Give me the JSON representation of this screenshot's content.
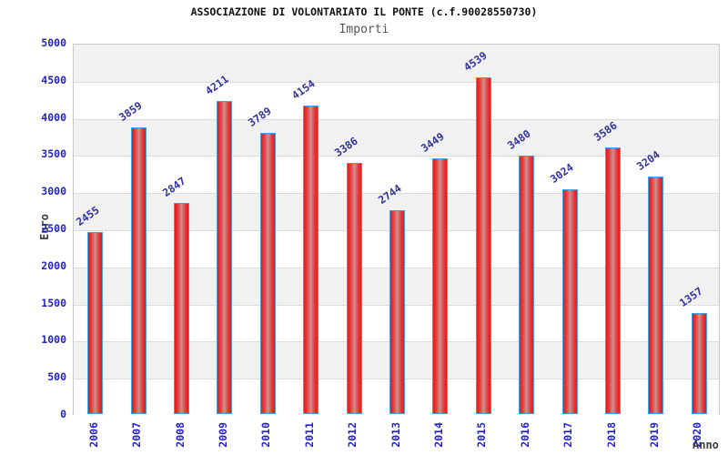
{
  "chart_data": {
    "type": "bar",
    "title": "ASSOCIAZIONE DI VOLONTARIATO IL PONTE (c.f.90028550730)",
    "subtitle": "Importi",
    "xlabel": "Anno",
    "ylabel": "Euro",
    "categories": [
      "2006",
      "2007",
      "2008",
      "2009",
      "2010",
      "2011",
      "2012",
      "2013",
      "2014",
      "2015",
      "2016",
      "2017",
      "2018",
      "2019",
      "2020"
    ],
    "values": [
      2455,
      3859,
      2847,
      4211,
      3789,
      4154,
      3386,
      2744,
      3449,
      4539,
      3480,
      3024,
      3586,
      3204,
      1357
    ],
    "ylim": [
      0,
      5000
    ],
    "ytick_step": 500,
    "ytick_labels": [
      "0",
      "500",
      "1000",
      "1500",
      "2000",
      "2500",
      "3000",
      "3500",
      "4000",
      "4500",
      "5000"
    ],
    "legend_position": "none",
    "grid": "horizontal alternating bands",
    "colors": {
      "bar_edge_red": "#ee1717",
      "bar_center_highlight": "#cf9090",
      "bar_border_blue": "#4a9fe3",
      "tick_label_blue": "#2323cd",
      "value_label_navy": "#32329b",
      "axis_title_gray": "#3c3c3c",
      "band_gray": "#f1f1f1",
      "band_white": "#ffffff",
      "grid_line_gray": "#dcdcdc",
      "title_black": "#111111",
      "subtitle_gray": "#555555"
    }
  }
}
